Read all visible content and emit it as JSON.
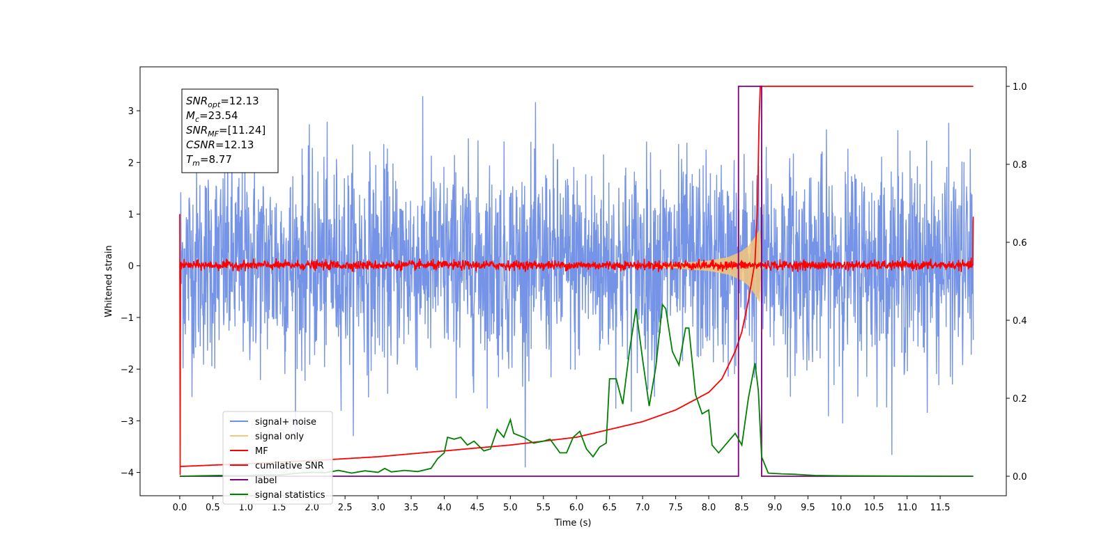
{
  "chart_data": {
    "type": "line",
    "xlabel": "Time (s)",
    "ylabel": "Whitened strain",
    "y2label": "",
    "xlim": [
      -0.6,
      12.5
    ],
    "ylim": [
      -4.45,
      3.85
    ],
    "y2lim": [
      -0.05,
      1.05
    ],
    "xticks": [
      0.0,
      0.5,
      1.0,
      1.5,
      2.0,
      2.5,
      3.0,
      3.5,
      4.0,
      4.5,
      5.0,
      5.5,
      6.0,
      6.5,
      7.0,
      7.5,
      8.0,
      8.5,
      9.0,
      9.5,
      10.0,
      10.5,
      11.0,
      11.5
    ],
    "xtick_labels": [
      "0.0",
      "0.5",
      "1.0",
      "1.5",
      "2.0",
      "2.5",
      "3.0",
      "3.5",
      "4.0",
      "4.5",
      "5.0",
      "5.5",
      "6.0",
      "6.5",
      "7.0",
      "7.5",
      "8.0",
      "8.5",
      "9.0",
      "9.5",
      "10.0",
      "10.5",
      "11.0",
      "11.5"
    ],
    "yticks": [
      -4,
      -3,
      -2,
      -1,
      0,
      1,
      2,
      3
    ],
    "ytick_labels": [
      "−4",
      "−3",
      "−2",
      "−1",
      "0",
      "1",
      "2",
      "3"
    ],
    "y2ticks": [
      0.0,
      0.2,
      0.4,
      0.6,
      0.8,
      1.0
    ],
    "y2tick_labels": [
      "0.0",
      "0.2",
      "0.4",
      "0.6",
      "0.8",
      "1.0"
    ],
    "grid": false,
    "legend_position": "lower-left",
    "series": [
      {
        "name": "signal+ noise",
        "axis": "left",
        "color": "#6f8ee6",
        "kind": "noise",
        "x_range": [
          0,
          12
        ],
        "noise_envelope": [
          -2.3,
          2.4
        ],
        "extreme_values": [
          -3.9,
          3.3
        ]
      },
      {
        "name": "signal only",
        "axis": "left",
        "color": "#f5c77a",
        "kind": "chirp",
        "merger_time": 8.77,
        "peak_amplitude": 0.7,
        "amplitude_points": [
          [
            0.0,
            0.002
          ],
          [
            6.0,
            0.02
          ],
          [
            7.5,
            0.05
          ],
          [
            8.0,
            0.1
          ],
          [
            8.3,
            0.17
          ],
          [
            8.5,
            0.28
          ],
          [
            8.6,
            0.38
          ],
          [
            8.7,
            0.55
          ],
          [
            8.77,
            0.7
          ],
          [
            8.8,
            0.1
          ],
          [
            8.85,
            0.0
          ]
        ]
      },
      {
        "name": "MF",
        "axis": "left",
        "color": "#ff0000",
        "kind": "noise",
        "x_range": [
          0,
          12
        ],
        "noise_envelope": [
          -0.12,
          0.18
        ],
        "edge_spikes": [
          [
            0.0,
            1.0
          ],
          [
            0.0,
            -4.05
          ],
          [
            12.0,
            0.95
          ]
        ]
      },
      {
        "name": "cumilative SNR",
        "axis": "right",
        "color": "#ff0000",
        "points": [
          [
            0.0,
            0.025
          ],
          [
            1.0,
            0.032
          ],
          [
            2.0,
            0.04
          ],
          [
            3.0,
            0.05
          ],
          [
            4.0,
            0.065
          ],
          [
            5.0,
            0.08
          ],
          [
            5.5,
            0.09
          ],
          [
            6.0,
            0.1
          ],
          [
            6.5,
            0.12
          ],
          [
            7.0,
            0.14
          ],
          [
            7.5,
            0.17
          ],
          [
            8.0,
            0.215
          ],
          [
            8.2,
            0.25
          ],
          [
            8.4,
            0.32
          ],
          [
            8.5,
            0.37
          ],
          [
            8.6,
            0.45
          ],
          [
            8.7,
            0.55
          ],
          [
            8.74,
            0.7
          ],
          [
            8.77,
            1.0
          ],
          [
            12.0,
            1.0
          ]
        ]
      },
      {
        "name": "label",
        "axis": "right",
        "color": "#800080",
        "points": [
          [
            0.0,
            0.0
          ],
          [
            8.45,
            0.0
          ],
          [
            8.45,
            1.0
          ],
          [
            8.8,
            1.0
          ],
          [
            8.8,
            0.0
          ],
          [
            12.0,
            0.0
          ]
        ]
      },
      {
        "name": "signal statistics",
        "axis": "right",
        "color": "#008000",
        "points": [
          [
            0.0,
            0.0
          ],
          [
            0.3,
            0.001
          ],
          [
            0.6,
            0.002
          ],
          [
            0.9,
            0.001
          ],
          [
            1.2,
            0.003
          ],
          [
            1.5,
            0.003
          ],
          [
            1.8,
            0.008
          ],
          [
            2.0,
            0.01
          ],
          [
            2.2,
            0.009
          ],
          [
            2.4,
            0.015
          ],
          [
            2.6,
            0.008
          ],
          [
            2.8,
            0.014
          ],
          [
            3.0,
            0.01
          ],
          [
            3.1,
            0.02
          ],
          [
            3.2,
            0.011
          ],
          [
            3.4,
            0.015
          ],
          [
            3.6,
            0.012
          ],
          [
            3.8,
            0.02
          ],
          [
            3.9,
            0.045
          ],
          [
            4.0,
            0.06
          ],
          [
            4.05,
            0.1
          ],
          [
            4.15,
            0.095
          ],
          [
            4.25,
            0.1
          ],
          [
            4.35,
            0.08
          ],
          [
            4.45,
            0.09
          ],
          [
            4.6,
            0.065
          ],
          [
            4.7,
            0.07
          ],
          [
            4.8,
            0.12
          ],
          [
            4.9,
            0.1
          ],
          [
            5.0,
            0.145
          ],
          [
            5.05,
            0.11
          ],
          [
            5.2,
            0.1
          ],
          [
            5.35,
            0.085
          ],
          [
            5.5,
            0.09
          ],
          [
            5.6,
            0.095
          ],
          [
            5.75,
            0.06
          ],
          [
            5.85,
            0.06
          ],
          [
            5.95,
            0.1
          ],
          [
            6.05,
            0.115
          ],
          [
            6.15,
            0.07
          ],
          [
            6.25,
            0.05
          ],
          [
            6.35,
            0.075
          ],
          [
            6.45,
            0.085
          ],
          [
            6.5,
            0.25
          ],
          [
            6.6,
            0.25
          ],
          [
            6.7,
            0.185
          ],
          [
            6.8,
            0.32
          ],
          [
            6.9,
            0.43
          ],
          [
            7.0,
            0.3
          ],
          [
            7.1,
            0.18
          ],
          [
            7.2,
            0.28
          ],
          [
            7.3,
            0.44
          ],
          [
            7.35,
            0.43
          ],
          [
            7.45,
            0.32
          ],
          [
            7.55,
            0.285
          ],
          [
            7.65,
            0.38
          ],
          [
            7.7,
            0.38
          ],
          [
            7.8,
            0.21
          ],
          [
            7.9,
            0.16
          ],
          [
            8.0,
            0.17
          ],
          [
            8.05,
            0.08
          ],
          [
            8.15,
            0.06
          ],
          [
            8.25,
            0.08
          ],
          [
            8.4,
            0.11
          ],
          [
            8.5,
            0.08
          ],
          [
            8.6,
            0.2
          ],
          [
            8.7,
            0.29
          ],
          [
            8.75,
            0.22
          ],
          [
            8.8,
            0.05
          ],
          [
            8.9,
            0.008
          ],
          [
            9.1,
            0.006
          ],
          [
            9.3,
            0.005
          ],
          [
            9.6,
            0.002
          ],
          [
            10.0,
            0.001
          ],
          [
            12.0,
            0.0
          ]
        ]
      }
    ],
    "annotation": {
      "lines": [
        {
          "var": "SNR",
          "sub": "opt",
          "value": "=12.13"
        },
        {
          "var": "M",
          "sub": "c",
          "value": "=23.54"
        },
        {
          "var": "SNR",
          "sub": "MF",
          "value": "=[11.24]"
        },
        {
          "var": "CSNR",
          "sub": "",
          "value": "=12.13"
        },
        {
          "var": "T",
          "sub": "m",
          "value": "=8.77"
        }
      ]
    }
  }
}
